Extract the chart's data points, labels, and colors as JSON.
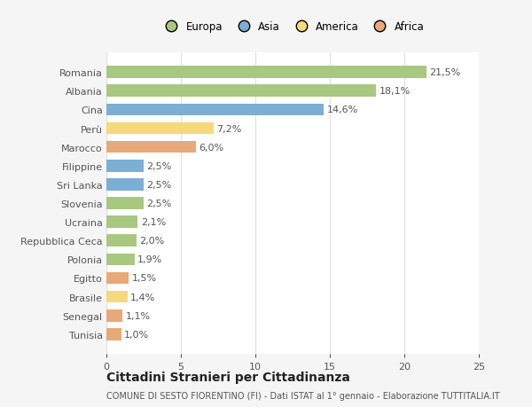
{
  "categories": [
    "Tunisia",
    "Senegal",
    "Brasile",
    "Egitto",
    "Polonia",
    "Repubblica Ceca",
    "Ucraina",
    "Slovenia",
    "Sri Lanka",
    "Filippine",
    "Marocco",
    "Perù",
    "Cina",
    "Albania",
    "Romania"
  ],
  "values": [
    1.0,
    1.1,
    1.4,
    1.5,
    1.9,
    2.0,
    2.1,
    2.5,
    2.5,
    2.5,
    6.0,
    7.2,
    14.6,
    18.1,
    21.5
  ],
  "labels": [
    "1,0%",
    "1,1%",
    "1,4%",
    "1,5%",
    "1,9%",
    "2,0%",
    "2,1%",
    "2,5%",
    "2,5%",
    "2,5%",
    "6,0%",
    "7,2%",
    "14,6%",
    "18,1%",
    "21,5%"
  ],
  "continent": [
    "Africa",
    "Africa",
    "America",
    "Africa",
    "Europa",
    "Europa",
    "Europa",
    "Europa",
    "Asia",
    "Asia",
    "Africa",
    "America",
    "Asia",
    "Europa",
    "Europa"
  ],
  "colors": {
    "Europa": "#a8c880",
    "Asia": "#7bafd4",
    "America": "#f5d97a",
    "Africa": "#e8a878"
  },
  "legend_order": [
    "Europa",
    "Asia",
    "America",
    "Africa"
  ],
  "xlim": [
    0,
    25
  ],
  "xticks": [
    0,
    5,
    10,
    15,
    20,
    25
  ],
  "title": "Cittadini Stranieri per Cittadinanza",
  "subtitle": "COMUNE DI SESTO FIORENTINO (FI) - Dati ISTAT al 1° gennaio - Elaborazione TUTTITALIA.IT",
  "figure_bg": "#f5f5f5",
  "plot_bg": "#ffffff",
  "bar_height": 0.65,
  "label_fontsize": 8,
  "tick_fontsize": 8,
  "title_fontsize": 10,
  "subtitle_fontsize": 7,
  "grid_color": "#e0e0e0",
  "text_color": "#555555"
}
